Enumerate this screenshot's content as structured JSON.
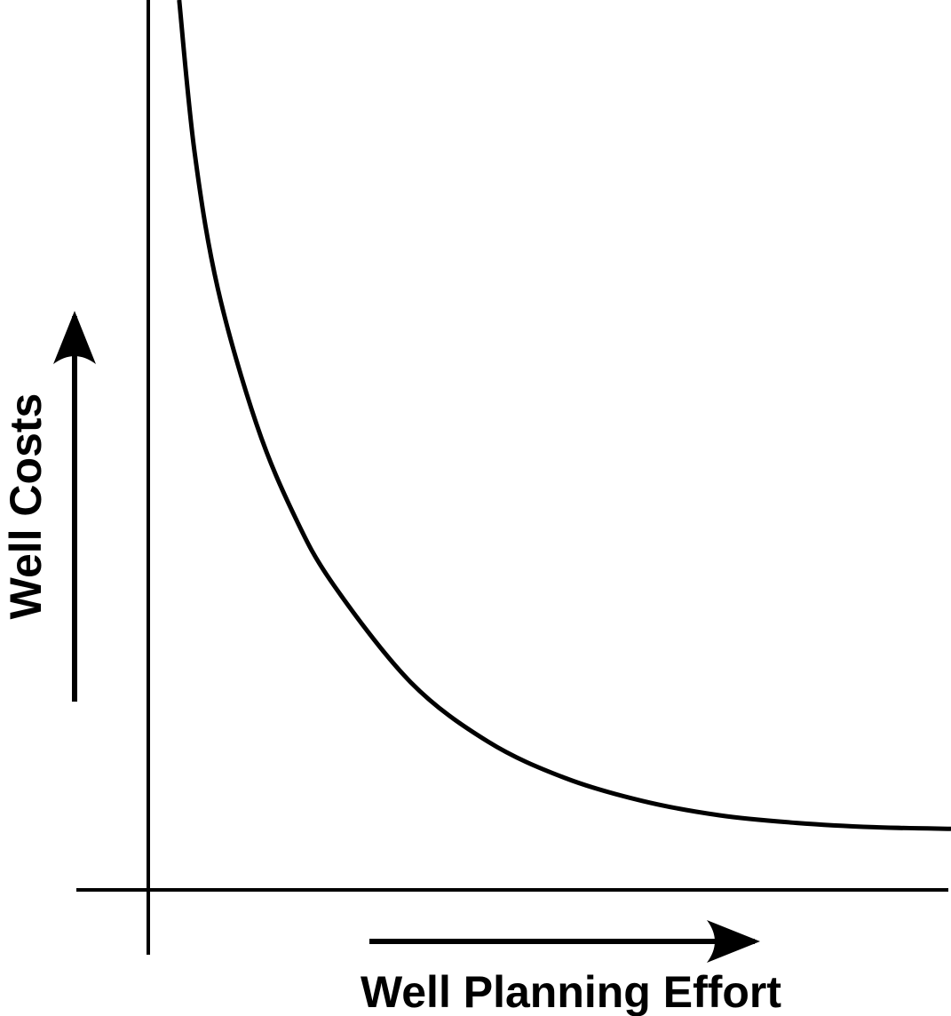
{
  "chart_data": {
    "type": "line",
    "title": "",
    "xlabel": "Well Planning Effort",
    "ylabel": "Well Costs",
    "x_ticks": [],
    "y_ticks": [],
    "grid": false,
    "legend": "none",
    "colors": {
      "line": "#000000",
      "axis": "#000000",
      "background": "#ffffff"
    },
    "series": [
      {
        "x": [
          0.0,
          0.2,
          0.5,
          1.0,
          1.5,
          2.0,
          3.0,
          4.0,
          5.0,
          6.0,
          7.0,
          8.0,
          9.0,
          10.0
        ],
        "y": [
          10.0,
          8.2,
          6.6,
          5.0,
          3.9,
          3.1,
          1.95,
          1.25,
          0.82,
          0.55,
          0.38,
          0.29,
          0.24,
          0.22
        ]
      }
    ],
    "xlim": [
      -0.4,
      10.0
    ],
    "ylim": [
      -0.5,
      10.0
    ]
  }
}
